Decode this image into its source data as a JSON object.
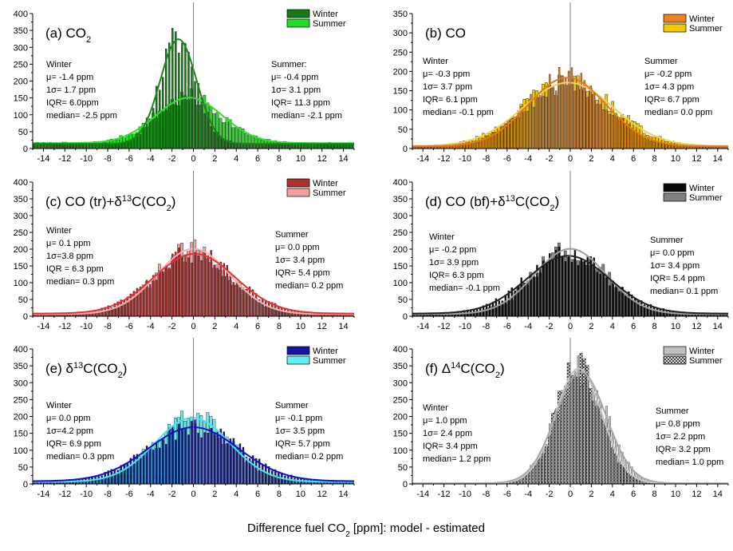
{
  "xlabel": {
    "before": "Difference fuel CO",
    "sub": "2",
    "after": " [ppm]:  model - estimated"
  },
  "colors": {
    "axis": "#000000",
    "zero_line": "#808080"
  },
  "panels": [
    {
      "title": {
        "main": "(a) CO",
        "sub": "2",
        "rest": ""
      },
      "ylim": [
        0,
        400
      ],
      "yticks": [
        "0",
        "50",
        "100",
        "150",
        "200",
        "250",
        "300",
        "350",
        "400"
      ],
      "xticks": [
        "-14",
        "-12",
        "-10",
        "-8",
        "-6",
        "-4",
        "-2",
        "0",
        "2",
        "4",
        "6",
        "8",
        "10",
        "12",
        "14"
      ],
      "xlim": [
        -15,
        15
      ],
      "winter_color": "#1a7a1a",
      "summer_color": "#22dd22",
      "summer_hatch": false,
      "winter_fit_color": "#148a14",
      "summer_fit_color": "#33dd33",
      "legend": [
        "Winter",
        "Summer"
      ],
      "winter_stats": [
        "Winter",
        "μ= -1.4 ppm",
        "1σ= 1.7 ppm",
        "IQR= 6.0ppm",
        "median= -2.5 ppm"
      ],
      "summer_stats": [
        "Summer:",
        "μ= -0.4 ppm",
        "1σ= 3.1 ppm",
        "IQR= 11.3 ppm",
        "median= -2.1 ppm"
      ],
      "winter": {
        "mu": -1.4,
        "sigma": 1.7,
        "peak": 310,
        "base": 14
      },
      "summer": {
        "mu": -0.4,
        "sigma": 3.1,
        "peak": 135,
        "base": 16
      }
    },
    {
      "title": {
        "main": "(b) CO",
        "sub": "",
        "rest": ""
      },
      "ylim": [
        0,
        350
      ],
      "yticks": [
        "0",
        "50",
        "100",
        "150",
        "200",
        "250",
        "300",
        "350"
      ],
      "xticks": [
        "-14",
        "-12",
        "-10",
        "-8",
        "-6",
        "-4",
        "-2",
        "0",
        "2",
        "4",
        "6",
        "8",
        "10",
        "12",
        "14"
      ],
      "xlim": [
        -15,
        15
      ],
      "winter_color": "#f08020",
      "summer_color": "#f0c800",
      "summer_hatch": false,
      "winter_fit_color": "#e87818",
      "summer_fit_color": "#f0d060",
      "legend": [
        "Winter",
        "Summer"
      ],
      "winter_stats": [
        "Winter",
        "μ= -0.3 ppm",
        "1σ= 3.7 ppm",
        "IQR= 6.1 ppm",
        "median= -0.1 ppm"
      ],
      "summer_stats": [
        "Summer",
        "μ= -0.2 ppm",
        "1σ= 4.3 ppm",
        "IQR= 6.7 ppm",
        "median= 0.0 ppm"
      ],
      "winter": {
        "mu": -0.3,
        "sigma": 3.7,
        "peak": 178,
        "base": 6
      },
      "summer": {
        "mu": -0.2,
        "sigma": 4.3,
        "peak": 165,
        "base": 6
      }
    },
    {
      "title": {
        "main": "(c) CO (tr)+δ",
        "sup": "13",
        "after": "C(CO",
        "sub": "2",
        "rest": ")"
      },
      "ylim": [
        0,
        400
      ],
      "yticks": [
        "0",
        "50",
        "100",
        "150",
        "200",
        "250",
        "300",
        "350",
        "400"
      ],
      "xticks": [
        "-14",
        "-12",
        "-10",
        "-8",
        "-6",
        "-4",
        "-2",
        "0",
        "2",
        "4",
        "6",
        "8",
        "10",
        "12",
        "14"
      ],
      "xlim": [
        -15,
        15
      ],
      "winter_color": "#b03030",
      "summer_color": "#f4a0a0",
      "summer_hatch": false,
      "winter_fit_color": "#e83030",
      "summer_fit_color": "#f8b0b0",
      "legend": [
        "Winter",
        "Summer"
      ],
      "winter_stats": [
        "Winter",
        "μ= 0.1 ppm",
        "1σ=3.8 ppm",
        "IQR = 6.3 ppm",
        "median= 0.3 ppm"
      ],
      "summer_stats": [
        "Summer",
        "μ= 0.0 ppm",
        "1σ= 3.4 ppm",
        "IQR= 5.4 ppm",
        "median= 0.2 ppm"
      ],
      "winter": {
        "mu": 0.1,
        "sigma": 3.8,
        "peak": 178,
        "base": 8
      },
      "summer": {
        "mu": 0.0,
        "sigma": 3.4,
        "peak": 195,
        "base": 6
      }
    },
    {
      "title": {
        "main": "(d) CO (bf)+δ",
        "sup": "13",
        "after": "C(CO",
        "sub": "2",
        "rest": ")"
      },
      "ylim": [
        0,
        400
      ],
      "yticks": [
        "0",
        "50",
        "100",
        "150",
        "200",
        "250",
        "300",
        "350",
        "400"
      ],
      "xticks": [
        "-14",
        "-12",
        "-10",
        "-8",
        "-6",
        "-4",
        "-2",
        "0",
        "2",
        "4",
        "6",
        "8",
        "10",
        "12",
        "14"
      ],
      "xlim": [
        -15,
        15
      ],
      "winter_color": "#0a0a0a",
      "summer_color": "#808080",
      "summer_hatch": false,
      "winter_fit_color": "#202020",
      "summer_fit_color": "#a0a0a0",
      "legend": [
        "Winter",
        "Summer"
      ],
      "winter_stats": [
        "Winter",
        "μ= -0.2 ppm",
        "1σ= 3.9 ppm",
        "IQR= 6.3 ppm",
        "median= -0.1 ppm"
      ],
      "summer_stats": [
        "Summer",
        "μ= 0.0 ppm",
        "1σ= 3.4 ppm",
        "IQR= 5.4 ppm",
        "median= 0.1 ppm"
      ],
      "winter": {
        "mu": -0.2,
        "sigma": 3.9,
        "peak": 172,
        "base": 8
      },
      "summer": {
        "mu": 0.0,
        "sigma": 3.4,
        "peak": 195,
        "base": 6
      }
    },
    {
      "title": {
        "main": "(e) δ",
        "sup": "13",
        "after": "C(CO",
        "sub": "2",
        "rest": ")"
      },
      "ylim": [
        0,
        400
      ],
      "yticks": [
        "0",
        "50",
        "100",
        "150",
        "200",
        "250",
        "300",
        "350",
        "400"
      ],
      "xticks": [
        "-14",
        "-12",
        "-10",
        "-8",
        "-6",
        "-4",
        "-2",
        "0",
        "2",
        "4",
        "6",
        "8",
        "10",
        "12",
        "14"
      ],
      "xlim": [
        -15,
        15
      ],
      "winter_color": "#1515a0",
      "summer_color": "#60f0f0",
      "summer_hatch": false,
      "winter_fit_color": "#1010c8",
      "summer_fit_color": "#40e8f0",
      "legend": [
        "Winter",
        "Summer"
      ],
      "winter_stats": [
        "Winter",
        "μ= 0.0 ppm",
        "1σ=4.2 ppm",
        "IQR= 6.9 ppm",
        "median= 0.3 ppm"
      ],
      "summer_stats": [
        "Summer",
        "μ=  -0.1 ppm",
        "1σ= 3.5 ppm",
        "IQR= 5.7 ppm",
        "median= 0.2 ppm"
      ],
      "winter": {
        "mu": 0.0,
        "sigma": 4.2,
        "peak": 160,
        "base": 8
      },
      "summer": {
        "mu": -0.1,
        "sigma": 3.5,
        "peak": 190,
        "base": 6
      }
    },
    {
      "title": {
        "main": "(f) Δ",
        "sup": "14",
        "after": "C(CO",
        "sub": "2",
        "rest": ")"
      },
      "ylim": [
        0,
        400
      ],
      "yticks": [
        "0",
        "50",
        "100",
        "150",
        "200",
        "250",
        "300",
        "350",
        "400"
      ],
      "xticks": [
        "-14",
        "-12",
        "-10",
        "-8",
        "-6",
        "-4",
        "-2",
        "0",
        "2",
        "4",
        "6",
        "8",
        "10",
        "12",
        "14"
      ],
      "xlim": [
        -15,
        15
      ],
      "winter_color": "#c0c0c0",
      "summer_color": "#ffffff",
      "summer_hatch": true,
      "winter_fit_color": "#a8a8a8",
      "summer_fit_color": "#c8c8c8",
      "legend": [
        "Winter",
        "Summer"
      ],
      "winter_stats": [
        "Winter",
        "μ= 1.0 ppm",
        "1σ= 2.4 ppm",
        "IQR= 3.4 ppm",
        "median= 1.2 ppm"
      ],
      "summer_stats": [
        "Summer",
        "μ= 0.8 ppm",
        "1σ= 2.2 ppm",
        "IQR= 3.2 ppm",
        "median= 1.0 ppm"
      ],
      "winter": {
        "mu": 1.0,
        "sigma": 2.4,
        "peak": 330,
        "base": 2
      },
      "summer": {
        "mu": 0.8,
        "sigma": 2.2,
        "peak": 340,
        "base": 2
      }
    }
  ],
  "chart_data": [
    {
      "type": "bar",
      "title": "(a) CO2",
      "xlabel": "Difference fuel CO2 [ppm]:  model - estimated",
      "ylim": [
        0,
        400
      ],
      "xlim": [
        -15,
        15
      ],
      "series": [
        {
          "name": "Winter",
          "mu": -1.4,
          "sigma": 1.7,
          "iqr": 6.0,
          "median": -2.5,
          "peak_count": 360
        },
        {
          "name": "Summer",
          "mu": -0.4,
          "sigma": 3.1,
          "iqr": 11.3,
          "median": -2.1,
          "peak_count": 150
        }
      ],
      "legend": "top-right"
    },
    {
      "type": "bar",
      "title": "(b) CO",
      "ylim": [
        0,
        350
      ],
      "xlim": [
        -15,
        15
      ],
      "series": [
        {
          "name": "Winter",
          "mu": -0.3,
          "sigma": 3.7,
          "iqr": 6.1,
          "median": -0.1,
          "peak_count": 190
        },
        {
          "name": "Summer",
          "mu": -0.2,
          "sigma": 4.3,
          "iqr": 6.7,
          "median": 0.0,
          "peak_count": 175
        }
      ],
      "legend": "top-right"
    },
    {
      "type": "bar",
      "title": "(c) CO (tr)+δ13C(CO2)",
      "ylim": [
        0,
        400
      ],
      "xlim": [
        -15,
        15
      ],
      "series": [
        {
          "name": "Winter",
          "mu": 0.1,
          "sigma": 3.8,
          "iqr": 6.3,
          "median": 0.3,
          "peak_count": 180
        },
        {
          "name": "Summer",
          "mu": 0.0,
          "sigma": 3.4,
          "iqr": 5.4,
          "median": 0.2,
          "peak_count": 225
        }
      ],
      "legend": "top-right"
    },
    {
      "type": "bar",
      "title": "(d) CO (bf)+δ13C(CO2)",
      "ylim": [
        0,
        400
      ],
      "xlim": [
        -15,
        15
      ],
      "series": [
        {
          "name": "Winter",
          "mu": -0.2,
          "sigma": 3.9,
          "iqr": 6.3,
          "median": -0.1,
          "peak_count": 180
        },
        {
          "name": "Summer",
          "mu": 0.0,
          "sigma": 3.4,
          "iqr": 5.4,
          "median": 0.1,
          "peak_count": 230
        }
      ],
      "legend": "top-right"
    },
    {
      "type": "bar",
      "title": "(e) δ13C(CO2)",
      "ylim": [
        0,
        400
      ],
      "xlim": [
        -15,
        15
      ],
      "series": [
        {
          "name": "Winter",
          "mu": 0.0,
          "sigma": 4.2,
          "iqr": 6.9,
          "median": 0.3,
          "peak_count": 170
        },
        {
          "name": "Summer",
          "mu": -0.1,
          "sigma": 3.5,
          "iqr": 5.7,
          "median": 0.2,
          "peak_count": 210
        }
      ],
      "legend": "top-right"
    },
    {
      "type": "bar",
      "title": "(f) Δ14C(CO2)",
      "ylim": [
        0,
        400
      ],
      "xlim": [
        -15,
        15
      ],
      "series": [
        {
          "name": "Winter",
          "mu": 1.0,
          "sigma": 2.4,
          "iqr": 3.4,
          "median": 1.2,
          "peak_count": 340
        },
        {
          "name": "Summer",
          "mu": 0.8,
          "sigma": 2.2,
          "iqr": 3.2,
          "median": 1.0,
          "peak_count": 340
        }
      ],
      "legend": "top-right"
    }
  ]
}
